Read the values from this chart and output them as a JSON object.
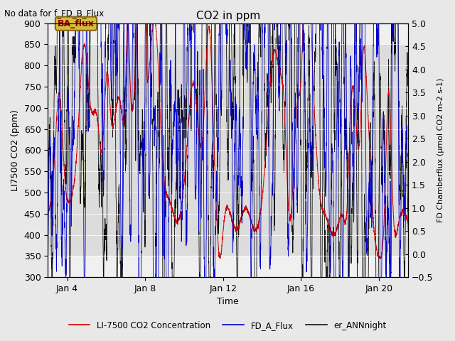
{
  "title": "CO2 in ppm",
  "top_left_text": "No data for f_FD_B_Flux",
  "annotation_text": "BA_flux",
  "xlabel": "Time",
  "ylabel_left": "LI7500 CO2 (ppm)",
  "ylabel_right": "FD Chamberflux (μmol CO2 m-2 s-1)",
  "ylim_left": [
    300,
    900
  ],
  "ylim_right": [
    -0.5,
    5.0
  ],
  "xlim_days": [
    3.0,
    21.5
  ],
  "xtick_labels": [
    "Jan 4",
    "Jan 8",
    "Jan 12",
    "Jan 16",
    "Jan 20"
  ],
  "xtick_positions": [
    4,
    8,
    12,
    16,
    20
  ],
  "yticks_left": [
    300,
    350,
    400,
    450,
    500,
    550,
    600,
    650,
    700,
    750,
    800,
    850,
    900
  ],
  "yticks_right": [
    -0.5,
    0.0,
    0.5,
    1.0,
    1.5,
    2.0,
    2.5,
    3.0,
    3.5,
    4.0,
    4.5,
    5.0
  ],
  "legend_entries": [
    {
      "label": "LI-7500 CO2 Concentration",
      "color": "#cc0000",
      "lw": 1.2
    },
    {
      "label": "FD_A_Flux",
      "color": "#0000cc",
      "lw": 1.2
    },
    {
      "label": "er_ANNnight",
      "color": "#111111",
      "lw": 1.2
    }
  ],
  "bg_color": "#e8e8e8",
  "plot_bg_color": "#f0f0f0",
  "band_low": 350,
  "band_high": 850,
  "band_color": "#dcdcdc",
  "seed": 42,
  "n_points": 3000,
  "x_start": 3.0,
  "x_end": 21.5
}
